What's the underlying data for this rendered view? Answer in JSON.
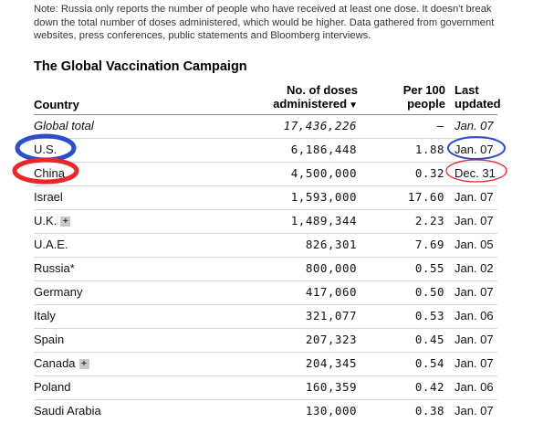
{
  "note": "Note: Russia only reports the number of people who have received at least one dose. It doesn't break down the total number of doses administered, which would be higher. Data gathered from government websites, press conferences, public statements and Bloomberg interviews.",
  "title": "The Global Vaccination Campaign",
  "headers": {
    "country": "Country",
    "doses_line1": "No. of doses",
    "doses_line2": "administered",
    "doses_sort_icon": "▼",
    "per_line1": "Per 100",
    "per_line2": "people",
    "last_line1": "Last",
    "last_line2": "updated"
  },
  "rows": [
    {
      "country": "Global total",
      "doses": "17,436,226",
      "per100": "–",
      "updated": "Jan. 07",
      "expandable": false,
      "italic": true
    },
    {
      "country": "U.S.",
      "doses": "6,186,448",
      "per100": "1.88",
      "updated": "Jan. 07",
      "expandable": false,
      "italic": false
    },
    {
      "country": "China",
      "doses": "4,500,000",
      "per100": "0.32",
      "updated": "Dec. 31",
      "expandable": false,
      "italic": false
    },
    {
      "country": "Israel",
      "doses": "1,593,000",
      "per100": "17.60",
      "updated": "Jan. 07",
      "expandable": false,
      "italic": false
    },
    {
      "country": "U.K.",
      "doses": "1,489,344",
      "per100": "2.23",
      "updated": "Jan. 07",
      "expandable": true,
      "italic": false
    },
    {
      "country": "U.A.E.",
      "doses": "826,301",
      "per100": "7.69",
      "updated": "Jan. 05",
      "expandable": false,
      "italic": false
    },
    {
      "country": "Russia*",
      "doses": "800,000",
      "per100": "0.55",
      "updated": "Jan. 02",
      "expandable": false,
      "italic": false
    },
    {
      "country": "Germany",
      "doses": "417,060",
      "per100": "0.50",
      "updated": "Jan. 07",
      "expandable": false,
      "italic": false
    },
    {
      "country": "Italy",
      "doses": "321,077",
      "per100": "0.53",
      "updated": "Jan. 06",
      "expandable": false,
      "italic": false
    },
    {
      "country": "Spain",
      "doses": "207,323",
      "per100": "0.45",
      "updated": "Jan. 07",
      "expandable": false,
      "italic": false
    },
    {
      "country": "Canada",
      "doses": "204,345",
      "per100": "0.54",
      "updated": "Jan. 07",
      "expandable": true,
      "italic": false
    },
    {
      "country": "Poland",
      "doses": "160,359",
      "per100": "0.42",
      "updated": "Jan. 06",
      "expandable": false,
      "italic": false
    },
    {
      "country": "Saudi Arabia",
      "doses": "130,000",
      "per100": "0.38",
      "updated": "Jan. 07",
      "expandable": false,
      "italic": false
    }
  ],
  "expand_icon": "+",
  "colors": {
    "annotation_blue": "#2b4fc9",
    "annotation_red": "#e8282b"
  }
}
